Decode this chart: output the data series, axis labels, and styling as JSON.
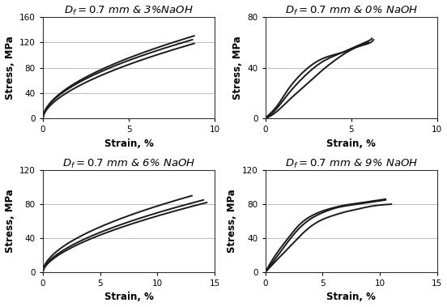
{
  "panels": [
    {
      "title": "$D_f = 0.7$ mm & 3%NaOH",
      "xlim": [
        0,
        10
      ],
      "ylim": [
        0,
        160
      ],
      "xticks": [
        0,
        5,
        10
      ],
      "yticks": [
        0,
        40,
        80,
        120,
        160
      ],
      "xlabel": "Strain, %",
      "ylabel": "Stress, MPa",
      "curves": [
        {
          "params": [
            0,
            8.8,
            130,
            0.55
          ]
        },
        {
          "params": [
            0,
            8.7,
            124,
            0.55
          ]
        },
        {
          "params": [
            0,
            8.8,
            118,
            0.58
          ]
        }
      ]
    },
    {
      "title": "$D_f = 0.7$ mm & 0% NaOH",
      "xlim": [
        0,
        10
      ],
      "ylim": [
        0,
        80
      ],
      "xticks": [
        0,
        5,
        10
      ],
      "yticks": [
        0,
        40,
        80
      ],
      "xlabel": "Strain, %",
      "ylabel": "Stress, MPa",
      "curves_custom": [
        {
          "x": [
            0,
            0.3,
            0.8,
            1.5,
            2.5,
            3.5,
            4.5,
            5.0,
            5.5,
            6.0,
            6.3
          ],
          "y": [
            0,
            3,
            10,
            22,
            36,
            46,
            52,
            55,
            57,
            59,
            62
          ]
        },
        {
          "x": [
            0,
            0.3,
            0.8,
            1.5,
            2.5,
            3.5,
            4.5,
            5.0,
            5.3,
            5.5,
            6.0
          ],
          "y": [
            0,
            2,
            7,
            16,
            28,
            40,
            50,
            54,
            56,
            57,
            60
          ]
        },
        {
          "x": [
            0,
            0.3,
            0.8,
            1.5,
            2.5,
            3.5,
            4.5,
            5.0,
            5.5,
            6.0,
            6.2
          ],
          "y": [
            0,
            4,
            12,
            26,
            40,
            48,
            52,
            55,
            58,
            61,
            63
          ]
        }
      ]
    },
    {
      "title": "$D_f = 0.7$ mm & 6% NaOH",
      "xlim": [
        0,
        15
      ],
      "ylim": [
        0,
        120
      ],
      "xticks": [
        0,
        5,
        10,
        15
      ],
      "yticks": [
        0,
        40,
        80,
        120
      ],
      "xlabel": "Strain, %",
      "ylabel": "Stress, MPa",
      "curves": [
        {
          "params": [
            0,
            13.0,
            90,
            0.55
          ]
        },
        {
          "params": [
            0,
            14.0,
            85,
            0.58
          ]
        },
        {
          "params": [
            0,
            14.3,
            82,
            0.6
          ]
        }
      ]
    },
    {
      "title": "$D_f = 0.7$ mm & 9% NaOH",
      "xlim": [
        0,
        15
      ],
      "ylim": [
        0,
        120
      ],
      "xticks": [
        0,
        5,
        10,
        15
      ],
      "yticks": [
        0,
        40,
        80,
        120
      ],
      "xlabel": "Strain, %",
      "ylabel": "Stress, MPa",
      "curves_custom": [
        {
          "x": [
            0,
            0.3,
            1,
            2,
            3,
            4,
            5,
            6,
            7,
            8,
            9,
            10,
            10.5
          ],
          "y": [
            0,
            5,
            18,
            36,
            52,
            63,
            70,
            75,
            78,
            80,
            82,
            84,
            85
          ]
        },
        {
          "x": [
            0,
            0.3,
            1,
            2,
            3,
            4,
            5,
            6,
            7,
            8,
            9,
            10,
            11
          ],
          "y": [
            0,
            4,
            14,
            28,
            42,
            54,
            62,
            67,
            71,
            74,
            77,
            79,
            80
          ]
        },
        {
          "x": [
            0,
            0.3,
            1,
            2,
            3,
            4,
            5,
            6,
            7,
            8,
            9,
            10.5
          ],
          "y": [
            0,
            7,
            22,
            40,
            56,
            66,
            72,
            76,
            79,
            81,
            83,
            86
          ]
        }
      ]
    }
  ],
  "line_color": "#1a1a1a",
  "line_width": 1.4,
  "background_color": "#ffffff",
  "grid_color": "#bbbbbb",
  "title_fontsize": 9.5,
  "label_fontsize": 8.5,
  "tick_fontsize": 7.5
}
